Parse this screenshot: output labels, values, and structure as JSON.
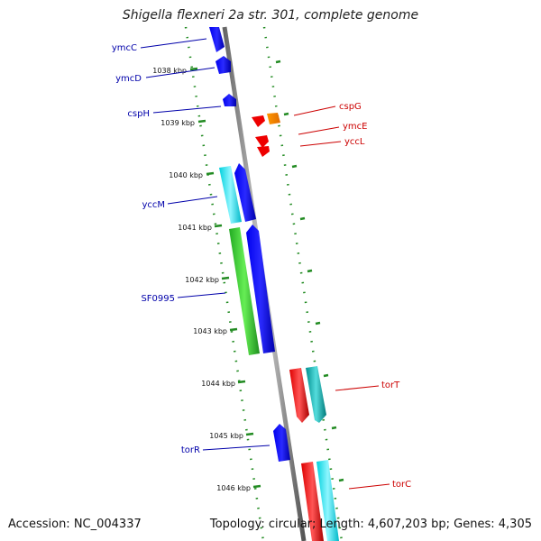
{
  "title": "Shigella flexneri 2a str. 301, complete genome",
  "accession": "Accession: NC_004337",
  "topology": "Topology: circular; Length: 4,607,203 bp; Genes: 4,305",
  "kbp_labels": [
    "1038 kbp",
    "1039 kbp",
    "1040 kbp",
    "1041 kbp",
    "1042 kbp",
    "1043 kbp",
    "1044 kbp",
    "1045 kbp",
    "1046 kbp"
  ],
  "genes": {
    "ymcC": "ymcC",
    "ymcD": "ymcD",
    "cspH": "cspH",
    "yccM": "yccM",
    "SF0995": "SF0995",
    "torR": "torR",
    "cspG": "cspG",
    "ymcE": "ymcE",
    "yccL": "yccL",
    "torT": "torT",
    "torC": "torC"
  },
  "colors": {
    "left_label": "#0000aa",
    "right_label": "#cc0000",
    "blue_gene": "#0000ee",
    "cyan_gene": "#00e5ee",
    "green_gene": "#33cc33",
    "red_gene": "#ee0000",
    "orange_gene": "#ff8c00",
    "teal_gene": "#00b2b2",
    "ticks": "#228b22",
    "backbone": "#888888"
  }
}
